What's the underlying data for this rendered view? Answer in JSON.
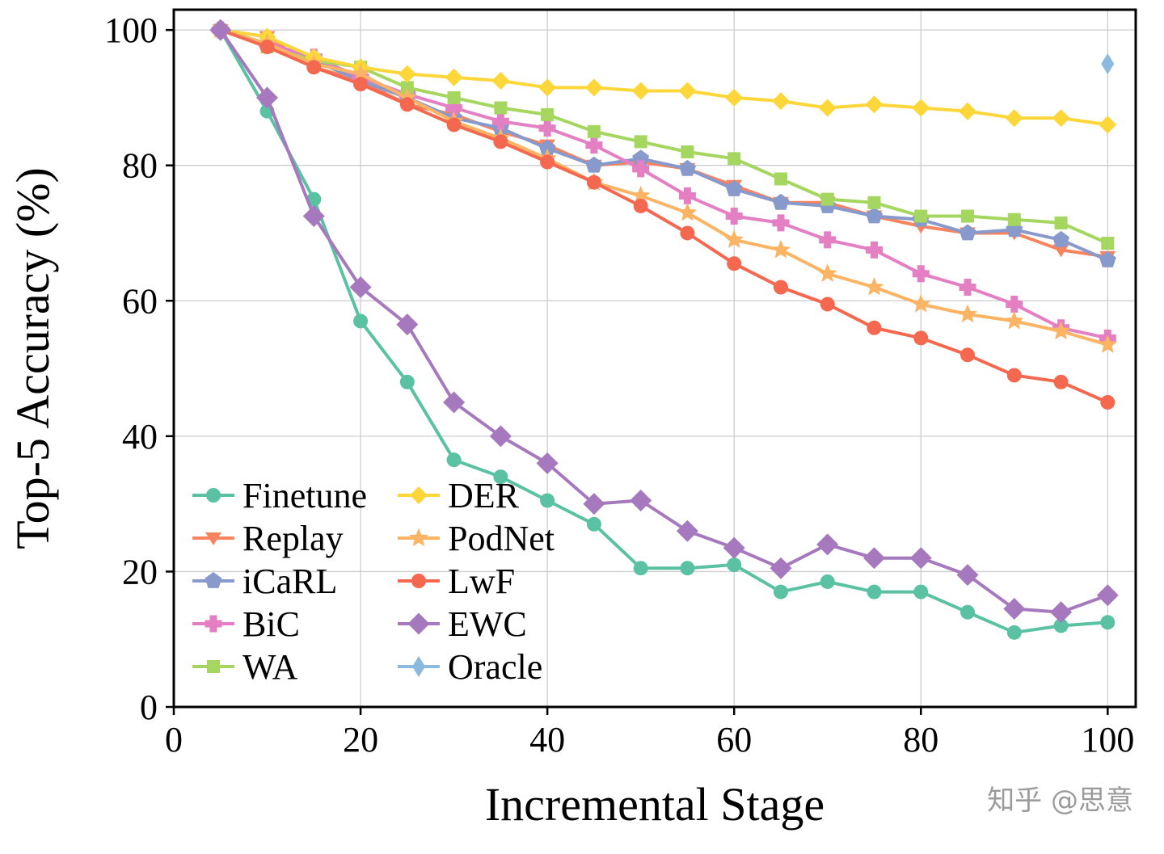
{
  "chart_data": {
    "type": "line",
    "title": "",
    "xlabel": "Incremental Stage",
    "ylabel": "Top-5 Accuracy (%)",
    "xlim": [
      0,
      103
    ],
    "ylim": [
      0,
      103
    ],
    "xticks": [
      0,
      20,
      40,
      60,
      80,
      100
    ],
    "yticks": [
      0,
      20,
      40,
      60,
      80,
      100
    ],
    "grid": true,
    "legend_position": "lower left",
    "x": [
      5,
      10,
      15,
      20,
      25,
      30,
      35,
      40,
      45,
      50,
      55,
      60,
      65,
      70,
      75,
      80,
      85,
      90,
      95,
      100
    ],
    "series": [
      {
        "name": "Finetune",
        "color": "#5ac2a2",
        "marker": "circle",
        "values": [
          100,
          88,
          75,
          57,
          48,
          36.5,
          34,
          30.5,
          27,
          20.5,
          20.5,
          21,
          17,
          18.5,
          17,
          17,
          14,
          11,
          12,
          12.5
        ]
      },
      {
        "name": "Replay",
        "color": "#f8845f",
        "marker": "triangle-down",
        "values": [
          100,
          99,
          94.5,
          92.5,
          89,
          87.5,
          85,
          83,
          80,
          80.5,
          79.5,
          77,
          74.5,
          74.5,
          72.5,
          71,
          70,
          70,
          67.5,
          66.5
        ]
      },
      {
        "name": "iCaRL",
        "color": "#8899cb",
        "marker": "pentagon",
        "values": [
          100,
          98,
          95.5,
          92.5,
          90,
          87,
          85.5,
          82.5,
          80,
          81,
          79.5,
          76.5,
          74.5,
          74,
          72.5,
          72,
          70,
          70.5,
          69,
          66
        ]
      },
      {
        "name": "BiC",
        "color": "#e47fc4",
        "marker": "plus",
        "values": [
          100,
          98,
          96,
          93,
          90.5,
          88.5,
          86.5,
          85.5,
          83,
          79.5,
          75.5,
          72.5,
          71.5,
          69,
          67.5,
          64,
          62,
          59.5,
          56,
          54.5
        ]
      },
      {
        "name": "WA",
        "color": "#a5d65f",
        "marker": "square",
        "values": [
          100,
          97.5,
          95.5,
          94.5,
          91.5,
          90,
          88.5,
          87.5,
          85,
          83.5,
          82,
          81,
          78,
          75,
          74.5,
          72.5,
          72.5,
          72,
          71.5,
          68.5
        ]
      },
      {
        "name": "DER",
        "color": "#fdd73a",
        "marker": "diamond",
        "values": [
          100,
          99,
          96,
          94.5,
          93.5,
          93,
          92.5,
          91.5,
          91.5,
          91,
          91,
          90,
          89.5,
          88.5,
          89,
          88.5,
          88,
          87,
          87,
          86
        ]
      },
      {
        "name": "PodNet",
        "color": "#fbb364",
        "marker": "star",
        "values": [
          100,
          98,
          95,
          93.5,
          90,
          86.5,
          84,
          81,
          77.5,
          75.5,
          73,
          69,
          67.5,
          64,
          62,
          59.5,
          58,
          57,
          55.5,
          53.5
        ]
      },
      {
        "name": "LwF",
        "color": "#f3684e",
        "marker": "circle",
        "values": [
          100,
          97.5,
          94.5,
          92,
          89,
          86,
          83.5,
          80.5,
          77.5,
          74,
          70,
          65.5,
          62,
          59.5,
          56,
          54.5,
          52,
          49,
          48,
          45
        ]
      },
      {
        "name": "EWC",
        "color": "#a678bd",
        "marker": "diamond-large",
        "values": [
          100,
          90,
          72.5,
          62,
          56.5,
          45,
          40,
          36,
          30,
          30.5,
          26,
          23.5,
          20.5,
          24,
          22,
          22,
          19.5,
          14.5,
          14,
          16.5
        ]
      },
      {
        "name": "Oracle",
        "color": "#8cb9de",
        "marker": "thin-diamond",
        "x": [
          100
        ],
        "values": [
          95
        ]
      }
    ],
    "watermark": "知乎 @思意"
  }
}
